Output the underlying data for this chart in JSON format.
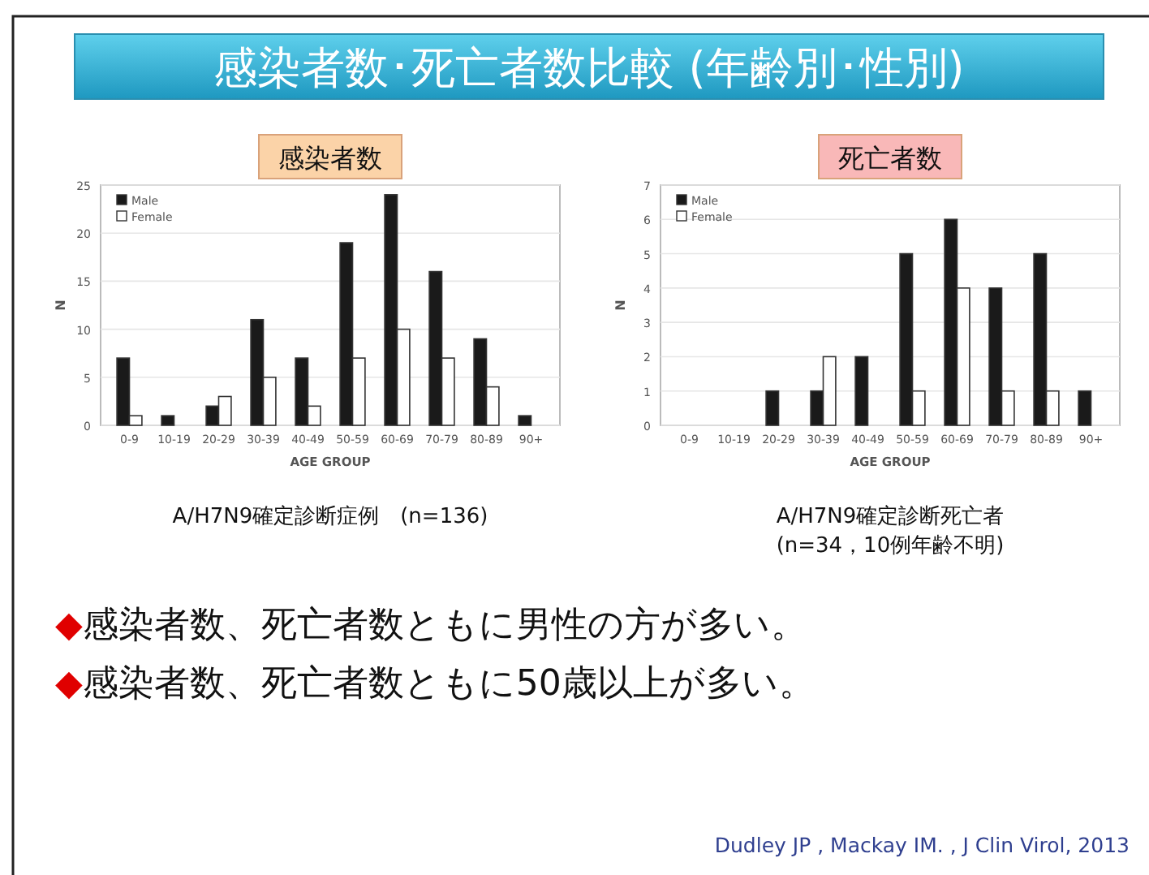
{
  "chart_data": [
    {
      "type": "other",
      "title": "感染者数･死亡者数比較 (年齢別･性別)",
      "annotations": [
        "◆感染者数、死亡者数ともに男性の方が多い。",
        "◆感染者数、死亡者数ともに50歳以上が多い。",
        "Dudley JP , Mackay IM. , J Clin Virol, 2013"
      ]
    },
    {
      "type": "bar",
      "title": "感染者数",
      "xlabel": "AGE GROUP",
      "ylabel": "N",
      "categories": [
        "0-9",
        "10-19",
        "20-29",
        "30-39",
        "40-49",
        "50-59",
        "60-69",
        "70-79",
        "80-89",
        "90+"
      ],
      "ylim": [
        0,
        25
      ],
      "yticks": [
        0,
        5,
        10,
        15,
        20,
        25
      ],
      "grid": "y",
      "legend": "top left",
      "annotations": [
        "A/H7N9確定診断症例　(n=136)"
      ],
      "series": [
        {
          "name": "Male",
          "color": "#1a1a1a",
          "values": [
            7,
            1,
            2,
            11,
            7,
            19,
            24,
            16,
            9,
            1
          ]
        },
        {
          "name": "Female",
          "color": "#ffffff",
          "values": [
            1,
            null,
            3,
            5,
            2,
            7,
            10,
            7,
            4,
            null
          ]
        }
      ]
    },
    {
      "type": "bar",
      "title": "死亡者数",
      "xlabel": "AGE GROUP",
      "ylabel": "N",
      "categories": [
        "0-9",
        "10-19",
        "20-29",
        "30-39",
        "40-49",
        "50-59",
        "60-69",
        "70-79",
        "80-89",
        "90+"
      ],
      "ylim": [
        0,
        7
      ],
      "yticks": [
        0,
        1,
        2,
        3,
        4,
        5,
        6,
        7
      ],
      "grid": "y",
      "legend": "top left",
      "annotations": [
        "A/H7N9確定診断死亡者\n(n=34，10例年齢不明)"
      ],
      "series": [
        {
          "name": "Male",
          "color": "#1a1a1a",
          "values": [
            null,
            null,
            1,
            1,
            2,
            5,
            6,
            4,
            5,
            1
          ]
        },
        {
          "name": "Female",
          "color": "#ffffff",
          "values": [
            null,
            null,
            null,
            2,
            null,
            1,
            4,
            1,
            1,
            null
          ]
        }
      ]
    }
  ]
}
